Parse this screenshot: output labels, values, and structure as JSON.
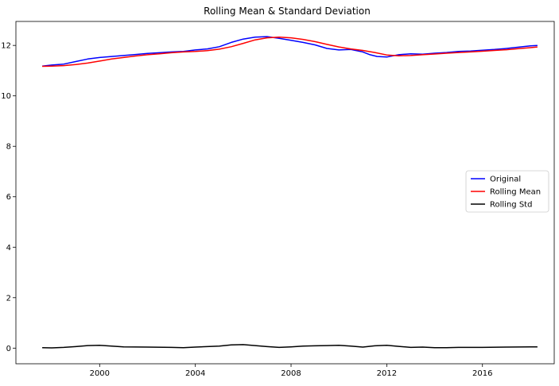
{
  "chart_data": {
    "type": "line",
    "title": "Rolling Mean & Standard Deviation",
    "xlabel": "",
    "ylabel": "",
    "xlim": [
      1996.5,
      2019.0
    ],
    "ylim": [
      -0.62,
      12.95
    ],
    "x_ticks": [
      2000,
      2004,
      2008,
      2012,
      2016
    ],
    "y_ticks": [
      0,
      2,
      4,
      6,
      8,
      10,
      12
    ],
    "grid": false,
    "legend_position": "center-right",
    "series": [
      {
        "name": "Original",
        "color": "#0000ff",
        "x": [
          1997.6,
          1998.0,
          1998.5,
          1999.0,
          1999.5,
          2000.0,
          2000.5,
          2001.0,
          2001.5,
          2002.0,
          2002.5,
          2003.0,
          2003.5,
          2004.0,
          2004.5,
          2005.0,
          2005.5,
          2006.0,
          2006.5,
          2007.0,
          2007.5,
          2008.0,
          2008.5,
          2009.0,
          2009.5,
          2010.0,
          2010.5,
          2011.0,
          2011.3,
          2011.6,
          2012.0,
          2012.5,
          2013.0,
          2013.5,
          2014.0,
          2014.5,
          2015.0,
          2015.5,
          2016.0,
          2016.5,
          2017.0,
          2017.5,
          2018.0,
          2018.3
        ],
        "y": [
          11.18,
          11.22,
          11.26,
          11.36,
          11.46,
          11.52,
          11.56,
          11.6,
          11.64,
          11.68,
          11.71,
          11.74,
          11.76,
          11.82,
          11.86,
          11.95,
          12.12,
          12.25,
          12.33,
          12.35,
          12.28,
          12.2,
          12.12,
          12.02,
          11.88,
          11.82,
          11.84,
          11.74,
          11.63,
          11.56,
          11.54,
          11.63,
          11.67,
          11.65,
          11.69,
          11.72,
          11.76,
          11.78,
          11.81,
          11.84,
          11.88,
          11.93,
          11.98,
          12.0
        ]
      },
      {
        "name": "Rolling Mean",
        "color": "#ff0000",
        "x": [
          1997.6,
          1998.0,
          1998.5,
          1999.0,
          1999.5,
          2000.0,
          2000.5,
          2001.0,
          2001.5,
          2002.0,
          2002.5,
          2003.0,
          2003.5,
          2004.0,
          2004.5,
          2005.0,
          2005.5,
          2006.0,
          2006.5,
          2007.0,
          2007.5,
          2008.0,
          2008.5,
          2009.0,
          2009.5,
          2010.0,
          2010.5,
          2011.0,
          2011.5,
          2012.0,
          2012.5,
          2013.0,
          2013.5,
          2014.0,
          2014.5,
          2015.0,
          2015.5,
          2016.0,
          2016.5,
          2017.0,
          2017.5,
          2018.0,
          2018.3
        ],
        "y": [
          11.17,
          11.18,
          11.2,
          11.24,
          11.3,
          11.38,
          11.46,
          11.52,
          11.58,
          11.63,
          11.67,
          11.71,
          11.74,
          11.76,
          11.79,
          11.85,
          11.95,
          12.08,
          12.22,
          12.3,
          12.33,
          12.3,
          12.24,
          12.15,
          12.04,
          11.94,
          11.86,
          11.8,
          11.72,
          11.62,
          11.59,
          11.6,
          11.63,
          11.66,
          11.69,
          11.72,
          11.74,
          11.77,
          11.8,
          11.83,
          11.87,
          11.91,
          11.94
        ]
      },
      {
        "name": "Rolling Std",
        "color": "#000000",
        "x": [
          1997.6,
          1998.0,
          1998.5,
          1999.0,
          1999.5,
          2000.0,
          2000.5,
          2001.0,
          2002.0,
          2003.0,
          2003.5,
          2004.0,
          2005.0,
          2005.5,
          2006.0,
          2006.5,
          2007.0,
          2007.5,
          2008.0,
          2008.5,
          2009.0,
          2009.5,
          2010.0,
          2010.5,
          2011.0,
          2011.5,
          2012.0,
          2012.5,
          2013.0,
          2013.5,
          2014.0,
          2014.5,
          2015.0,
          2016.0,
          2017.0,
          2018.0,
          2018.3
        ],
        "y": [
          0.02,
          0.01,
          0.03,
          0.06,
          0.1,
          0.11,
          0.08,
          0.05,
          0.04,
          0.03,
          0.02,
          0.04,
          0.08,
          0.13,
          0.14,
          0.1,
          0.06,
          0.03,
          0.05,
          0.08,
          0.09,
          0.1,
          0.11,
          0.08,
          0.04,
          0.09,
          0.11,
          0.07,
          0.03,
          0.04,
          0.02,
          0.02,
          0.03,
          0.03,
          0.04,
          0.05,
          0.05
        ]
      }
    ]
  }
}
